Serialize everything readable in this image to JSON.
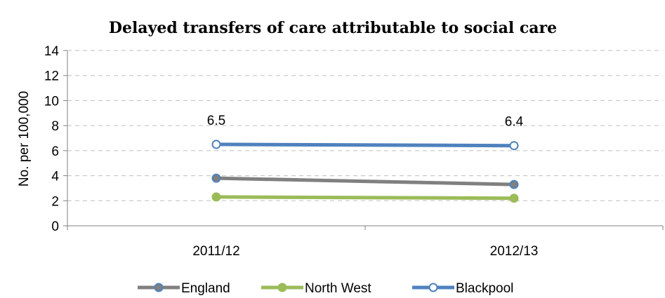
{
  "chart_data": {
    "type": "line",
    "title": "Delayed transfers of care attributable to social care",
    "xlabel": "",
    "ylabel": "No. per 100,000",
    "categories": [
      "2011/12",
      "2012/13"
    ],
    "ylim": [
      0,
      14
    ],
    "yticks": [
      0,
      2,
      4,
      6,
      8,
      10,
      12,
      14
    ],
    "grid": true,
    "legend_position": "bottom",
    "series": [
      {
        "name": "England",
        "values": [
          3.8,
          3.3
        ],
        "color": "#808080",
        "marker": "filled",
        "labels": []
      },
      {
        "name": "North West",
        "values": [
          2.3,
          2.2
        ],
        "color": "#9bbb59",
        "marker": "filled",
        "labels": []
      },
      {
        "name": "Blackpool",
        "values": [
          6.5,
          6.4
        ],
        "color": "#4f81bd",
        "marker": "hollow",
        "labels": [
          "6.5",
          "6.4"
        ]
      }
    ]
  }
}
